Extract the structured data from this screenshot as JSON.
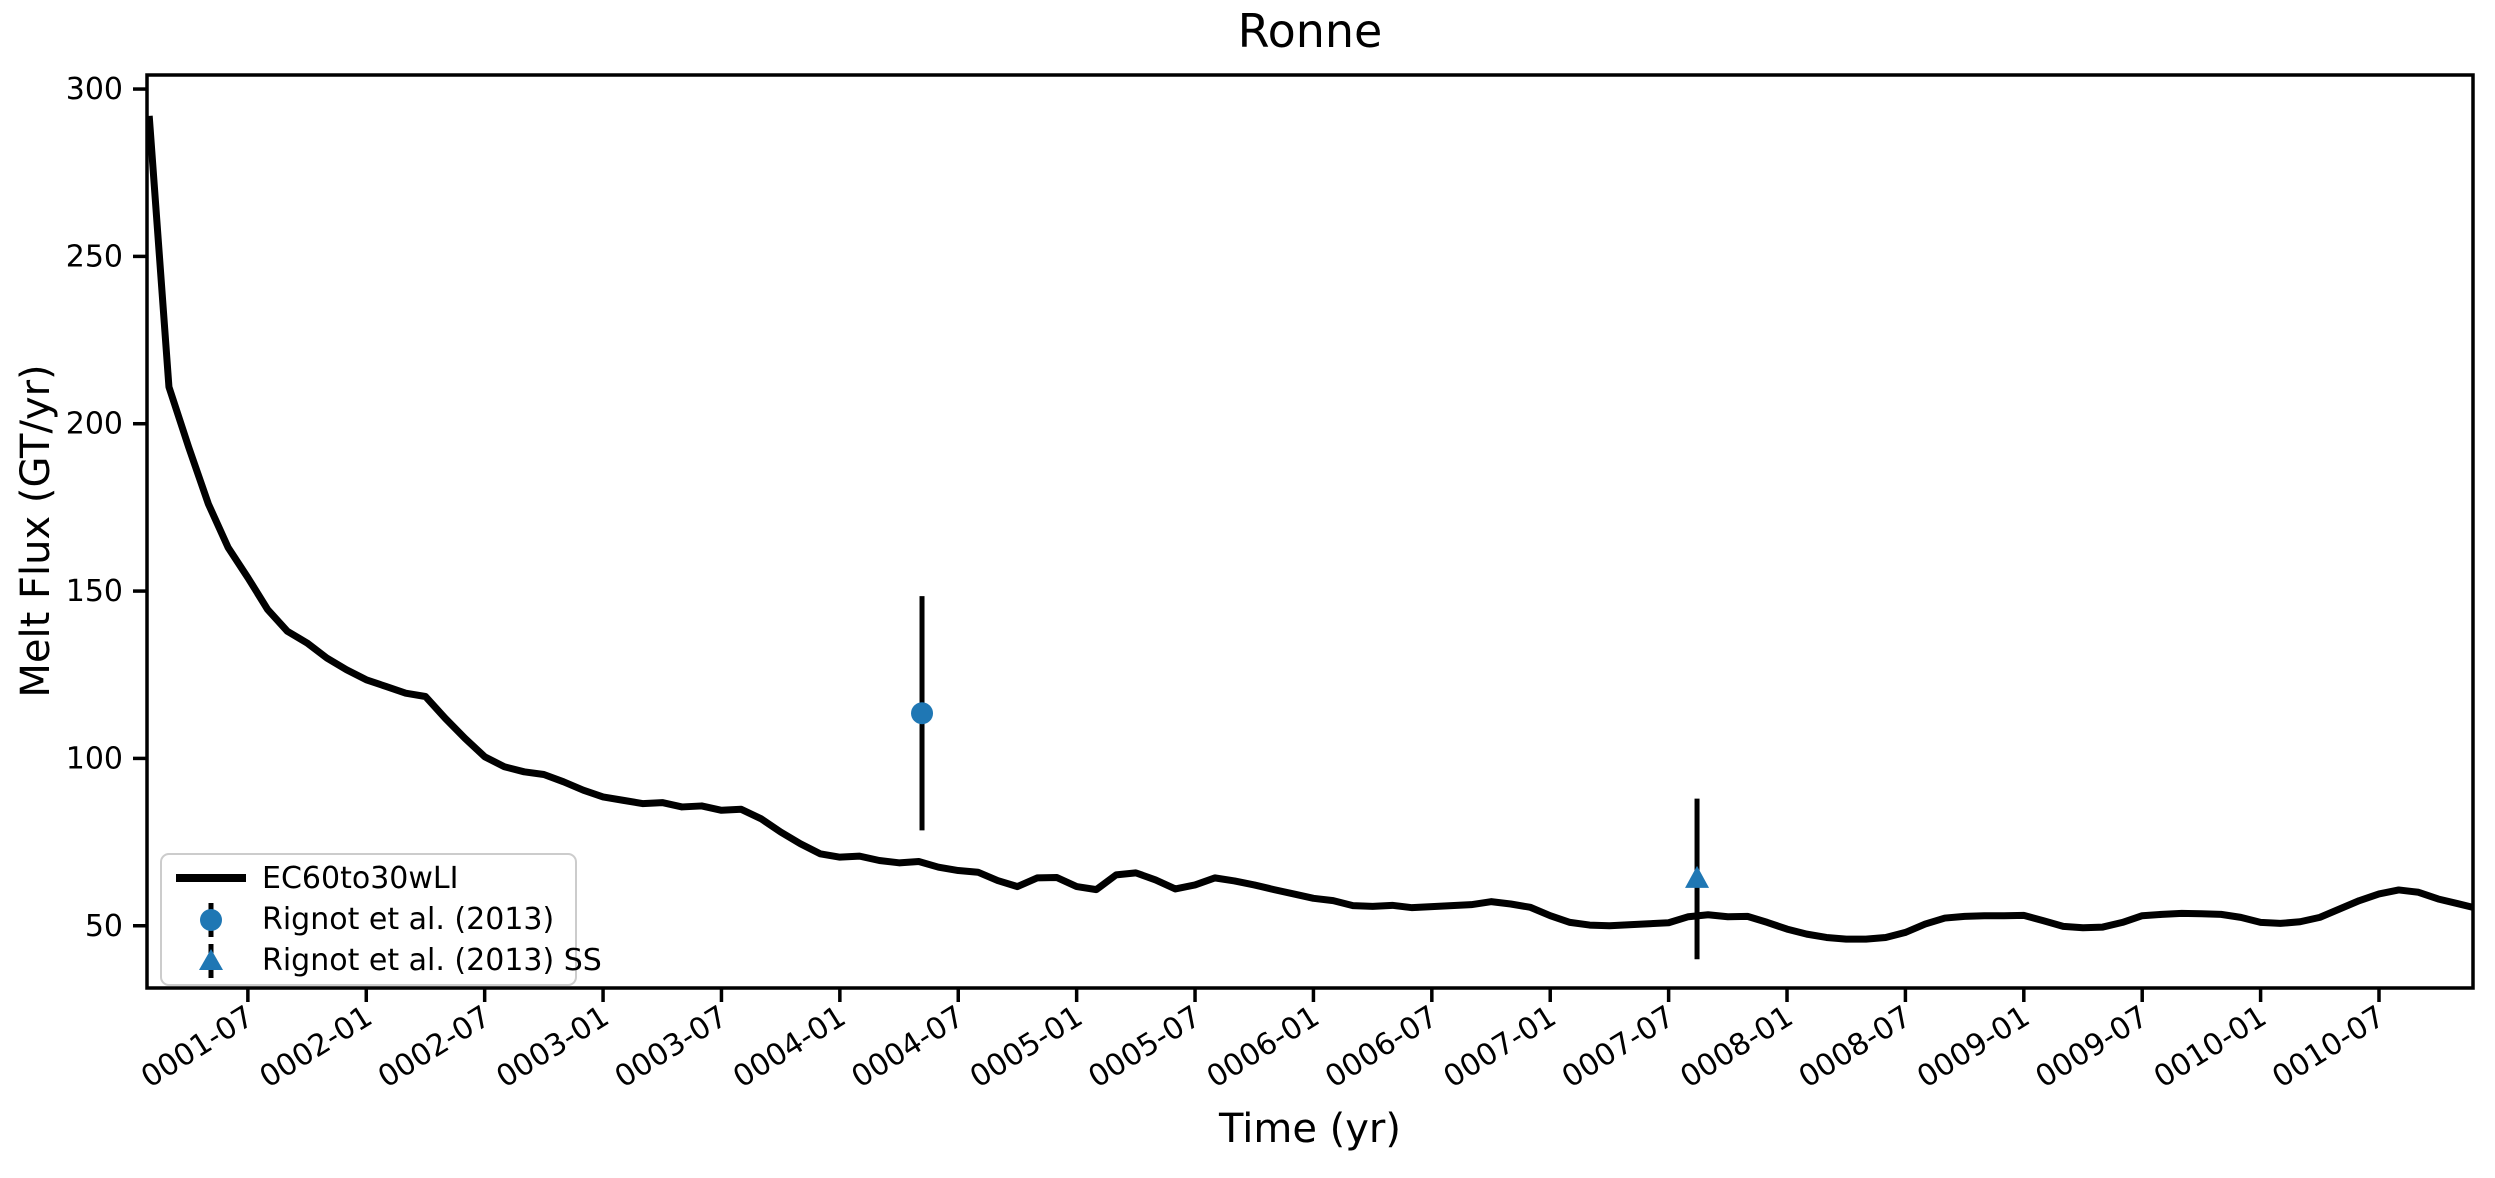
{
  "legend": {
    "border_color": "#cccccc",
    "items": [
      {
        "label": "EC60to30wLI",
        "marker": "thick-line",
        "color": "#000000"
      },
      {
        "label": "Rignot et al. (2013)",
        "marker": "circle-errorbar",
        "color": "#1f77b4"
      },
      {
        "label": "Rignot et al. (2013) SS",
        "marker": "triangle-errorbar",
        "color": "#1f77b4"
      }
    ]
  },
  "chart_data": {
    "type": "line",
    "title": "Ronne",
    "xlabel": "Time (yr)",
    "ylabel": "Melt Flux (GT/yr)",
    "grid": false,
    "legend_position": "lower-left",
    "x_axis": {
      "min_year": 1.074,
      "max_year": 10.897,
      "first_tick_year": 1.5,
      "tick_interval_years": 0.5,
      "tick_labels": [
        "0001-07",
        "0002-01",
        "0002-07",
        "0003-01",
        "0003-07",
        "0004-01",
        "0004-07",
        "0005-01",
        "0005-07",
        "0006-01",
        "0006-07",
        "0007-01",
        "0007-07",
        "0008-01",
        "0008-07",
        "0009-01",
        "0009-07",
        "0010-01",
        "0010-07"
      ]
    },
    "y_axis": {
      "min": 31.4,
      "max": 304.2,
      "tick_values": [
        50,
        100,
        150,
        200,
        250,
        300
      ]
    },
    "series": [
      {
        "name": "EC60to30wLI",
        "color": "#000000",
        "linewidth": 7,
        "cadence": "monthly",
        "time_start_year": 1,
        "units": "GT/yr",
        "values": [
          292,
          211,
          193,
          176,
          163,
          154,
          144.5,
          138,
          134.5,
          130,
          126.5,
          123.5,
          121.5,
          119.5,
          118.5,
          112,
          106,
          100.5,
          97.5,
          96,
          95.2,
          93,
          90.5,
          88.5,
          87.5,
          86.5,
          86.8,
          85.5,
          85.8,
          84.5,
          84.8,
          82,
          78,
          74.5,
          71.5,
          70.5,
          70.8,
          69.5,
          68.8,
          69.2,
          67.5,
          66.5,
          66,
          63.5,
          61.7,
          64.3,
          64.4,
          61.7,
          60.8,
          65.2,
          65.8,
          63.7,
          61.0,
          62.2,
          64.3,
          63.4,
          62.2,
          60.8,
          59.5,
          58.2,
          57.5,
          56.0,
          55.8,
          56.1,
          55.4,
          55.7,
          56.0,
          56.3,
          57.2,
          56.5,
          55.5,
          53.0,
          51,
          50.2,
          50,
          50.3,
          50.6,
          50.9,
          52.7,
          53.3,
          52.7,
          52.8,
          51,
          49,
          47.5,
          46.5,
          46,
          46,
          46.5,
          48,
          50.5,
          52.3,
          52.8,
          53,
          53,
          53.1,
          51.5,
          49.8,
          49.4,
          49.6,
          51,
          53,
          53.4,
          53.7,
          53.6,
          53.4,
          52.5,
          51,
          50.7,
          51.2,
          52.5,
          55,
          57.5,
          59.5,
          60.7,
          60,
          58,
          56.6,
          55.5
        ]
      }
    ],
    "observations": [
      {
        "label": "Rignot et al. (2013)",
        "marker": "circle",
        "color": "#1f77b4",
        "t_year": 4.347,
        "value": 113.5,
        "error_plus": 35,
        "error_minus": 35
      },
      {
        "label": "Rignot et al. (2013) SS",
        "marker": "triangle",
        "color": "#1f77b4",
        "t_year": 7.62,
        "value": 64,
        "error_plus": 24,
        "error_minus": 24
      }
    ]
  }
}
